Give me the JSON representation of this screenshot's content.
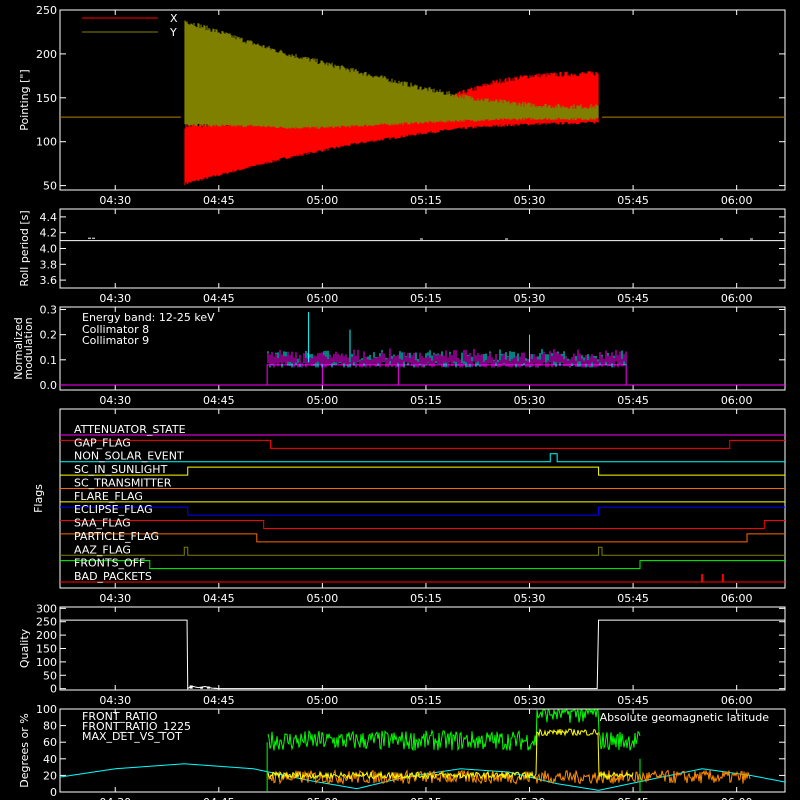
{
  "x_ticks": [
    "04:30",
    "04:45",
    "05:00",
    "05:15",
    "05:30",
    "05:45",
    "06:00"
  ],
  "x_range_minutes": [
    262,
    367
  ],
  "chart_data": [
    {
      "type": "line",
      "ylabel": "Pointing [\"]",
      "ylim": [
        45,
        250
      ],
      "yticks": [
        "50",
        "100",
        "150",
        "200",
        "250"
      ],
      "ytick_values": [
        50,
        100,
        150,
        200,
        250
      ],
      "legend": [
        {
          "name": "X",
          "color": "#ff0000"
        },
        {
          "name": "Y",
          "color": "#808000"
        }
      ],
      "legend_placement": "top-left",
      "series": [
        {
          "name": "X",
          "color": "#ff0000",
          "baseline": 128,
          "t": [
            262,
            279.5,
            280,
            285,
            290,
            295,
            300,
            305,
            310,
            315,
            320,
            325,
            330,
            335,
            340,
            340.5,
            367
          ],
          "min": [
            128,
            128,
            52,
            62,
            72,
            82,
            90,
            98,
            104,
            110,
            115,
            118,
            120,
            121,
            122,
            128,
            128
          ],
          "max": [
            128,
            128,
            118,
            120,
            122,
            124,
            126,
            128,
            132,
            138,
            155,
            168,
            175,
            177,
            178,
            128,
            128
          ]
        },
        {
          "name": "Y",
          "color": "#808000",
          "baseline": 128,
          "t": [
            262,
            279.5,
            280,
            285,
            290,
            295,
            300,
            305,
            310,
            315,
            320,
            325,
            330,
            335,
            340,
            340.5,
            367
          ],
          "min": [
            128,
            128,
            120,
            118,
            118,
            116,
            116,
            118,
            120,
            122,
            124,
            125,
            126,
            126,
            126,
            128,
            128
          ],
          "max": [
            128,
            128,
            238,
            225,
            212,
            200,
            190,
            180,
            170,
            160,
            152,
            146,
            142,
            140,
            140,
            128,
            128
          ]
        }
      ]
    },
    {
      "type": "line",
      "ylabel": "Roll period [s]",
      "ylim": [
        3.5,
        4.5
      ],
      "yticks": [
        "3.6",
        "3.8",
        "4.0",
        "4.2",
        "4.4"
      ],
      "ytick_values": [
        3.6,
        3.8,
        4.0,
        4.2,
        4.4
      ],
      "series": [
        {
          "name": "roll",
          "color": "#ffffff",
          "t": [
            262,
            264,
            266,
            268,
            320,
            322,
            346,
            348,
            367
          ],
          "y": [
            4.1,
            4.13,
            4.1,
            4.1,
            4.1,
            4.12,
            4.1,
            4.12,
            4.1
          ]
        }
      ]
    },
    {
      "type": "line",
      "ylabel": "Normalized modulation",
      "ylim": [
        -0.02,
        0.31
      ],
      "yticks": [
        "0.0",
        "0.1",
        "0.2",
        "0.3"
      ],
      "ytick_values": [
        0.0,
        0.1,
        0.2,
        0.3
      ],
      "annotations": [
        "Energy band: 12-25 keV"
      ],
      "legend": [
        {
          "name": "Collimator 8",
          "color": "#00ffff"
        },
        {
          "name": "Collimator 9",
          "color": "#ff00ff"
        }
      ],
      "legend_placement": "top-left",
      "active_range": [
        292,
        344
      ],
      "series": [
        {
          "name": "Collimator 8",
          "color": "#00ffff",
          "level_mean": 0.1,
          "level_spread": 0.03,
          "spikes": [
            [
              298,
              0.29
            ],
            [
              304,
              0.22
            ],
            [
              330,
              0.2
            ]
          ]
        },
        {
          "name": "Collimator 9",
          "color": "#ff00ff",
          "level_mean": 0.1,
          "level_spread": 0.03,
          "baseline_segments": [
            [
              292,
              0.09,
              0.0
            ],
            [
              300,
              0.09,
              0.0
            ],
            [
              311,
              0.09,
              0.0
            ],
            [
              344,
              0.09,
              0.0
            ]
          ]
        }
      ]
    },
    {
      "type": "line",
      "ylabel": "Flags",
      "flags": [
        {
          "name": "ATTENUATOR_STATE",
          "color": "#ff00ff",
          "steps": []
        },
        {
          "name": "GAP_FLAG",
          "color": "#ff0000",
          "steps": [
            [
              262,
              1
            ],
            [
              292.5,
              0
            ],
            [
              359,
              1
            ]
          ]
        },
        {
          "name": "NON_SOLAR_EVENT",
          "color": "#00ffff",
          "steps": [
            [
              262,
              0
            ],
            [
              333,
              1
            ],
            [
              334,
              0
            ]
          ]
        },
        {
          "name": "SC_IN_SUNLIGHT",
          "color": "#ffff00",
          "steps": [
            [
              262,
              0
            ],
            [
              280.5,
              1
            ],
            [
              340,
              0
            ]
          ]
        },
        {
          "name": "SC_TRANSMITTER",
          "color": "#ff6600",
          "steps": []
        },
        {
          "name": "FLARE_FLAG",
          "color": "#ffff00",
          "steps": []
        },
        {
          "name": "ECLIPSE_FLAG",
          "color": "#0000ff",
          "steps": [
            [
              262,
              1
            ],
            [
              280.5,
              0
            ],
            [
              340,
              1
            ]
          ]
        },
        {
          "name": "SAA_FLAG",
          "color": "#ff0000",
          "steps": [
            [
              262,
              1
            ],
            [
              291.5,
              0
            ],
            [
              364,
              1
            ]
          ]
        },
        {
          "name": "PARTICLE_FLAG",
          "color": "#ff6600",
          "steps": [
            [
              262,
              1
            ],
            [
              290.5,
              0
            ],
            [
              361.5,
              1
            ]
          ]
        },
        {
          "name": "AAZ_FLAG",
          "color": "#808000",
          "steps": [
            [
              262,
              0
            ],
            [
              280,
              1
            ],
            [
              280.5,
              0
            ],
            [
              340,
              1
            ],
            [
              340.5,
              0
            ]
          ]
        },
        {
          "name": "FRONTS_OFF",
          "color": "#00ff00",
          "steps": [
            [
              262,
              1
            ],
            [
              275,
              0
            ],
            [
              346,
              1
            ]
          ]
        },
        {
          "name": "BAD_PACKETS",
          "color": "#ff0000",
          "steps": [],
          "ticks": [
            355,
            358
          ]
        }
      ]
    },
    {
      "type": "line",
      "ylabel": "Quality",
      "ylim": [
        -5,
        305
      ],
      "yticks": [
        "0",
        "50",
        "100",
        "150",
        "200",
        "250",
        "300"
      ],
      "ytick_values": [
        0,
        50,
        100,
        150,
        200,
        250,
        300
      ],
      "series": [
        {
          "name": "quality",
          "color": "#ffffff",
          "t": [
            262,
            280.4,
            280.5,
            281,
            282,
            283,
            284,
            285,
            339.8,
            340,
            367
          ],
          "y": [
            256,
            256,
            0,
            10,
            4,
            8,
            2,
            0,
            0,
            256,
            256
          ]
        }
      ]
    },
    {
      "type": "line",
      "ylabel": "Degrees or %",
      "ylim": [
        0,
        100
      ],
      "yticks": [
        "0",
        "20",
        "40",
        "60",
        "80",
        "100"
      ],
      "ytick_values": [
        0,
        20,
        40,
        60,
        80,
        100
      ],
      "legend": [
        {
          "name": "FRONT_RATIO",
          "color": "#ffff00"
        },
        {
          "name": "FRONT_RATIO_1225",
          "color": "#00ff00"
        },
        {
          "name": "MAX_DET_VS_TOT",
          "color": "#ff8c00"
        }
      ],
      "legend_placement": "top-left",
      "annotations": [
        "Absolute geomagnetic latitude"
      ],
      "series": [
        {
          "name": "Absolute geomagnetic latitude",
          "color": "#00ffff",
          "t": [
            262,
            270,
            280,
            290,
            298,
            305,
            312,
            320,
            327,
            334,
            340,
            348,
            355,
            362,
            367
          ],
          "y": [
            18,
            28,
            34,
            28,
            14,
            4,
            18,
            28,
            24,
            10,
            2,
            16,
            28,
            20,
            12
          ]
        },
        {
          "name": "FRONT_RATIO_1225",
          "color": "#00ff00",
          "level_mean": 62,
          "level_spread": 12,
          "active_range": [
            292,
            346
          ],
          "plateau": [
            331,
            340,
            95
          ]
        },
        {
          "name": "FRONT_RATIO",
          "color": "#ffff00",
          "level_mean": 20,
          "level_spread": 4,
          "active_range": [
            292,
            345
          ],
          "plateau": [
            331,
            340,
            72
          ]
        },
        {
          "name": "MAX_DET_VS_TOT",
          "color": "#ff8c00",
          "level_mean": 18,
          "level_spread": 8,
          "active_range": [
            292,
            362
          ]
        }
      ]
    }
  ]
}
